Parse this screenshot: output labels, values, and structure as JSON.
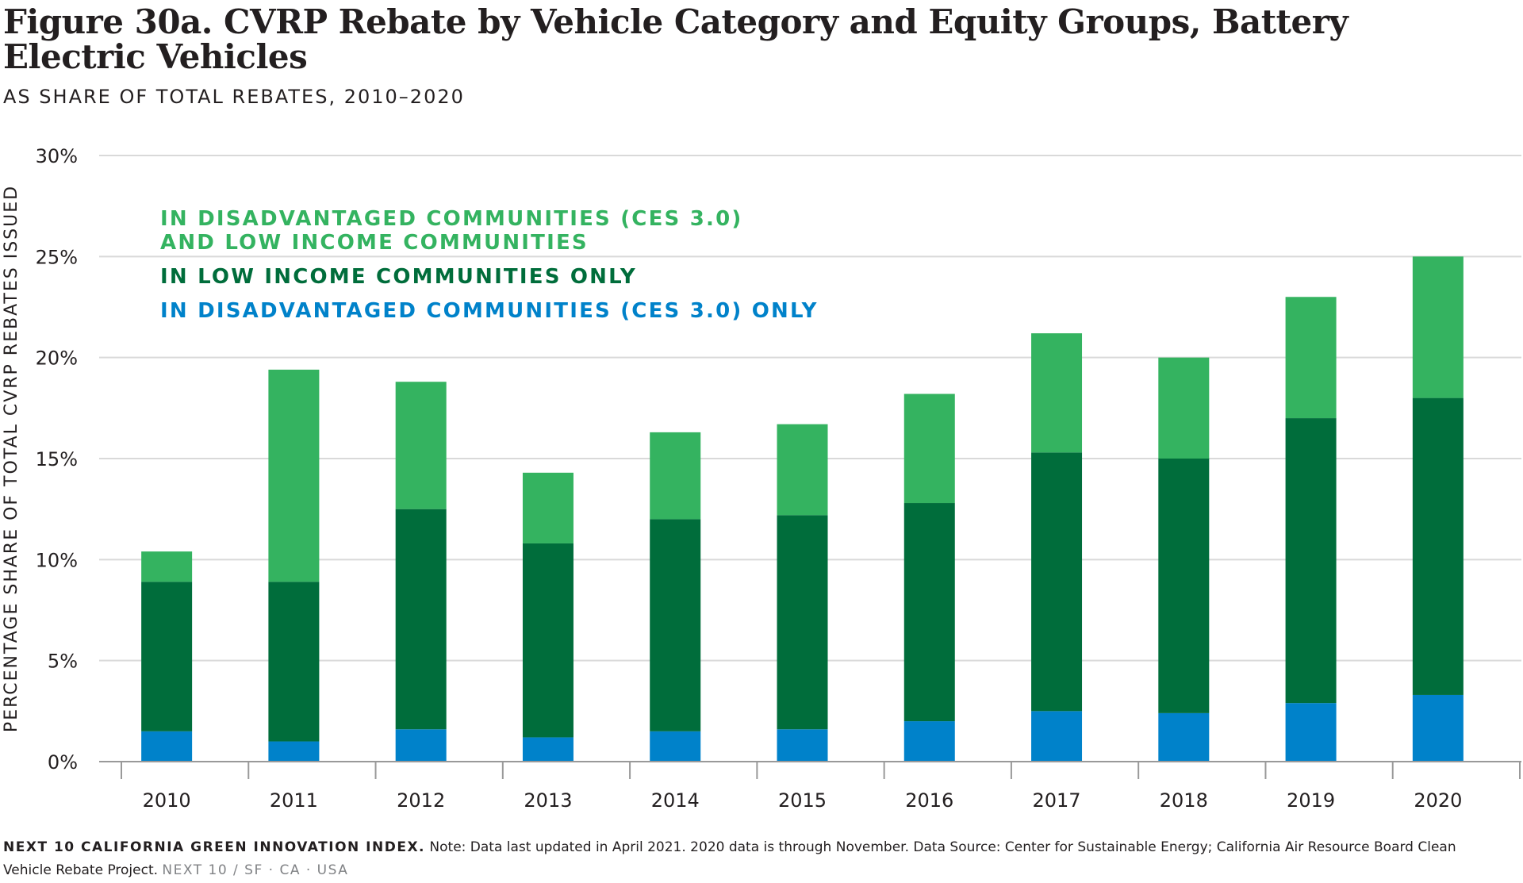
{
  "title": "Figure 30a. CVRP Rebate by Vehicle Category and Equity Groups, Battery Electric Vehicles",
  "subtitle": "AS SHARE OF TOTAL REBATES, 2010–2020",
  "footer": {
    "source_label": "NEXT 10 CALIFORNIA GREEN INNOVATION INDEX.",
    "note": "Note: Data last updated in April 2021. 2020 data is through November. Data Source: Center for Sustainable Energy; California Air Resource Board Clean Vehicle Rebate Project.",
    "brand": "NEXT 10 / SF · CA · USA"
  },
  "colors": {
    "both": "#34b360",
    "low_income": "#006d3b",
    "disadvantaged": "#0082ca",
    "grid": "#d9d9d9",
    "axis": "#999999"
  },
  "chart_data": {
    "type": "bar",
    "stacked": true,
    "ylabel": "PERCENTAGE SHARE OF TOTAL CVRP REBATES ISSUED",
    "xlabel": "",
    "ylim": [
      0,
      30
    ],
    "yticks": [
      "0%",
      "5%",
      "10%",
      "15%",
      "20%",
      "25%",
      "30%"
    ],
    "grid": true,
    "legend_position": "top-left",
    "categories": [
      "2010",
      "2011",
      "2012",
      "2013",
      "2014",
      "2015",
      "2016",
      "2017",
      "2018",
      "2019",
      "2020"
    ],
    "series": [
      {
        "key": "disadvantaged",
        "name": "IN DISADVANTAGED COMMUNITIES (CES 3.0) ONLY",
        "values": [
          1.5,
          1.0,
          1.6,
          1.2,
          1.5,
          1.6,
          2.0,
          2.5,
          2.4,
          2.9,
          3.3
        ]
      },
      {
        "key": "low_income",
        "name": "IN LOW INCOME COMMUNITIES ONLY",
        "values": [
          7.4,
          7.9,
          10.9,
          9.6,
          10.5,
          10.6,
          10.8,
          12.8,
          12.6,
          14.1,
          14.7
        ]
      },
      {
        "key": "both",
        "name_lines": [
          "IN DISADVANTAGED COMMUNITIES (CES 3.0)",
          "AND LOW INCOME COMMUNITIES"
        ],
        "values": [
          1.5,
          10.5,
          6.3,
          3.5,
          4.3,
          4.5,
          5.4,
          5.9,
          5.0,
          6.0,
          7.0
        ]
      }
    ]
  }
}
